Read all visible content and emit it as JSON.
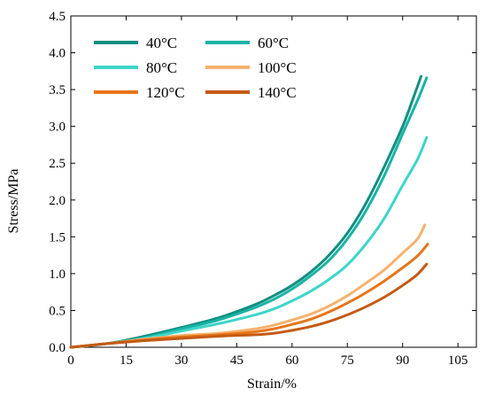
{
  "chart_data": {
    "type": "line",
    "xlabel": "Strain/%",
    "ylabel": "Stress/MPa",
    "xlim": [
      0,
      110
    ],
    "ylim": [
      0,
      4.5
    ],
    "xticks": [
      0,
      15,
      30,
      45,
      60,
      75,
      90,
      105
    ],
    "yticks": [
      0.0,
      0.5,
      1.0,
      1.5,
      2.0,
      2.5,
      3.0,
      3.5,
      4.0,
      4.5
    ],
    "ytick_labels": [
      "0.0",
      "0.5",
      "1.0",
      "1.5",
      "2.0",
      "2.5",
      "3.0",
      "3.5",
      "4.0",
      "4.5"
    ],
    "grid": false,
    "legend": "top-left",
    "series": [
      {
        "name": "40°C",
        "color": "#0e8f80",
        "x": [
          0,
          10,
          20,
          30,
          40,
          50,
          55,
          60,
          65,
          70,
          75,
          80,
          85,
          90,
          93,
          95
        ],
        "y": [
          0,
          0.05,
          0.15,
          0.27,
          0.4,
          0.58,
          0.7,
          0.84,
          1.02,
          1.25,
          1.55,
          1.95,
          2.45,
          3.0,
          3.4,
          3.68
        ]
      },
      {
        "name": "60°C",
        "color": "#19b3a6",
        "x": [
          0,
          10,
          20,
          30,
          40,
          50,
          55,
          60,
          65,
          70,
          75,
          80,
          85,
          90,
          94,
          96.5
        ],
        "y": [
          0,
          0.05,
          0.13,
          0.25,
          0.37,
          0.54,
          0.65,
          0.79,
          0.97,
          1.18,
          1.47,
          1.85,
          2.33,
          2.9,
          3.35,
          3.66
        ]
      },
      {
        "name": "80°C",
        "color": "#3dd6c8",
        "x": [
          0,
          10,
          20,
          30,
          40,
          50,
          55,
          60,
          65,
          70,
          75,
          80,
          85,
          90,
          94,
          96.5
        ],
        "y": [
          0,
          0.05,
          0.12,
          0.22,
          0.32,
          0.44,
          0.52,
          0.63,
          0.76,
          0.92,
          1.12,
          1.4,
          1.75,
          2.2,
          2.55,
          2.85
        ]
      },
      {
        "name": "100°C",
        "color": "#f5b26e",
        "x": [
          0,
          10,
          20,
          30,
          40,
          50,
          55,
          60,
          65,
          70,
          75,
          80,
          85,
          90,
          94,
          96
        ],
        "y": [
          0,
          0.05,
          0.11,
          0.16,
          0.19,
          0.25,
          0.3,
          0.37,
          0.45,
          0.56,
          0.7,
          0.87,
          1.05,
          1.28,
          1.47,
          1.66
        ]
      },
      {
        "name": "120°C",
        "color": "#e8751a",
        "x": [
          0,
          10,
          20,
          30,
          40,
          50,
          55,
          60,
          65,
          70,
          75,
          80,
          85,
          90,
          94,
          96.8
        ],
        "y": [
          0,
          0.05,
          0.1,
          0.14,
          0.17,
          0.21,
          0.25,
          0.31,
          0.38,
          0.48,
          0.6,
          0.74,
          0.9,
          1.08,
          1.24,
          1.4
        ]
      },
      {
        "name": "140°C",
        "color": "#c45a12",
        "x": [
          0,
          10,
          20,
          30,
          40,
          50,
          55,
          60,
          65,
          70,
          75,
          80,
          85,
          90,
          94,
          96.5
        ],
        "y": [
          0,
          0.05,
          0.09,
          0.12,
          0.15,
          0.17,
          0.19,
          0.23,
          0.28,
          0.35,
          0.44,
          0.55,
          0.68,
          0.84,
          0.99,
          1.13
        ]
      }
    ]
  }
}
